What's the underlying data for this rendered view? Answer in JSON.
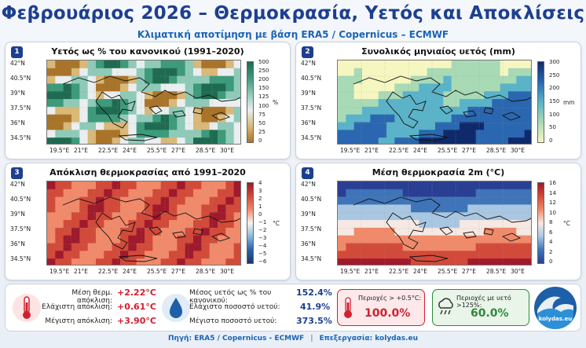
{
  "header": {
    "title": "Φεβρουάριος 2026 – Θερμοκρασία, Υετός και Αποκλίσεις",
    "subtitle": "Κλιματική αποτίμηση με βάση ERA5 / Copernicus – ECMWF"
  },
  "panels": [
    {
      "num": "1",
      "title": "Υετός ως % του κανονικού (1991–2020)",
      "colorbar_ticks": [
        "500",
        "250",
        "200",
        "150",
        "125",
        "100",
        "75",
        "50",
        "25",
        "0"
      ],
      "colorbar_unit": "%",
      "colors": [
        "#1f6b52",
        "#3d9a7a",
        "#8fcab8",
        "#eaeef0",
        "#d9b878",
        "#a9742a"
      ]
    },
    {
      "num": "2",
      "title": "Συνολικός μηνιαίος υετός (mm)",
      "colorbar_ticks": [
        "300",
        "250",
        "200",
        "150",
        "100",
        "50",
        "0"
      ],
      "colorbar_unit": "mm",
      "colors": [
        "#0f2a6b",
        "#2a67b0",
        "#5ab3c8",
        "#a7dab5",
        "#f6f6c0"
      ]
    },
    {
      "num": "3",
      "title": "Απόκλιση θερμοκρασίας από 1991–2020",
      "colorbar_ticks": [
        "4",
        "3",
        "2",
        "1",
        "0",
        "−1",
        "−2",
        "−3",
        "−4",
        "−5",
        "−6"
      ],
      "colorbar_unit": "°C",
      "colors": [
        "#9e1a2c",
        "#d24a3a",
        "#f08a6a",
        "#f7f4f2",
        "#89b9db",
        "#2b62a8",
        "#1a3370"
      ]
    },
    {
      "num": "4",
      "title": "Μέση θερμοκρασία 2m (°C)",
      "colorbar_ticks": [
        "16",
        "14",
        "12",
        "10",
        "8",
        "6",
        "4",
        "2",
        "0"
      ],
      "colorbar_unit": "°C",
      "colors": [
        "#9e1a2c",
        "#d24a3a",
        "#f08a6a",
        "#f6e8e2",
        "#a9c7e2",
        "#3f74b8",
        "#2a3f93"
      ]
    }
  ],
  "lat_ticks": [
    "42°N",
    "40.5°N",
    "39°N",
    "37.5°N",
    "36°N",
    "34.5°N"
  ],
  "lon_ticks": [
    "19.5°E",
    "21°E",
    "22.5°E",
    "24°E",
    "25.5°E",
    "27°E",
    "28.5°E",
    "30°E"
  ],
  "stats": {
    "temp": [
      {
        "label": "Μέση θερμ. απόκλιση:",
        "value": "+2.22°C"
      },
      {
        "label": "Ελάχιστη απόκλιση:",
        "value": "+0.61°C"
      },
      {
        "label": "Μέγιστη απόκλιση:",
        "value": "+3.90°C"
      }
    ],
    "precip": [
      {
        "label": "Μέσος υετός ως % του κανονικού:",
        "value": "152.4%"
      },
      {
        "label": "Ελάχιστο ποσοστό υετού:",
        "value": "41.9%"
      },
      {
        "label": "Μέγιστο ποσοστό υετού:",
        "value": "373.5%"
      }
    ],
    "area_warm": {
      "label": "Περιοχές > +0.5°C:",
      "value": "100.0%"
    },
    "area_wet": {
      "label": "Περιοχές με υετό >125%:",
      "value": "60.0%"
    }
  },
  "footer": {
    "source": "Πηγή: ERA5 / Copernicus - ECMWF",
    "processing": "Επεξεργασία: kolydas.eu"
  },
  "logo": {
    "text": "kolydas.eu",
    "icon": "wave-logo-icon"
  },
  "icons": {
    "thermometer": "thermometer-icon",
    "drop": "water-drop-icon",
    "cloud": "rain-cloud-icon"
  },
  "accent_colors": {
    "title": "#1d3f8f",
    "temp_red": "#d1202f",
    "precip_blue": "#1d3f8f",
    "wet_green": "#2d8a3a"
  }
}
